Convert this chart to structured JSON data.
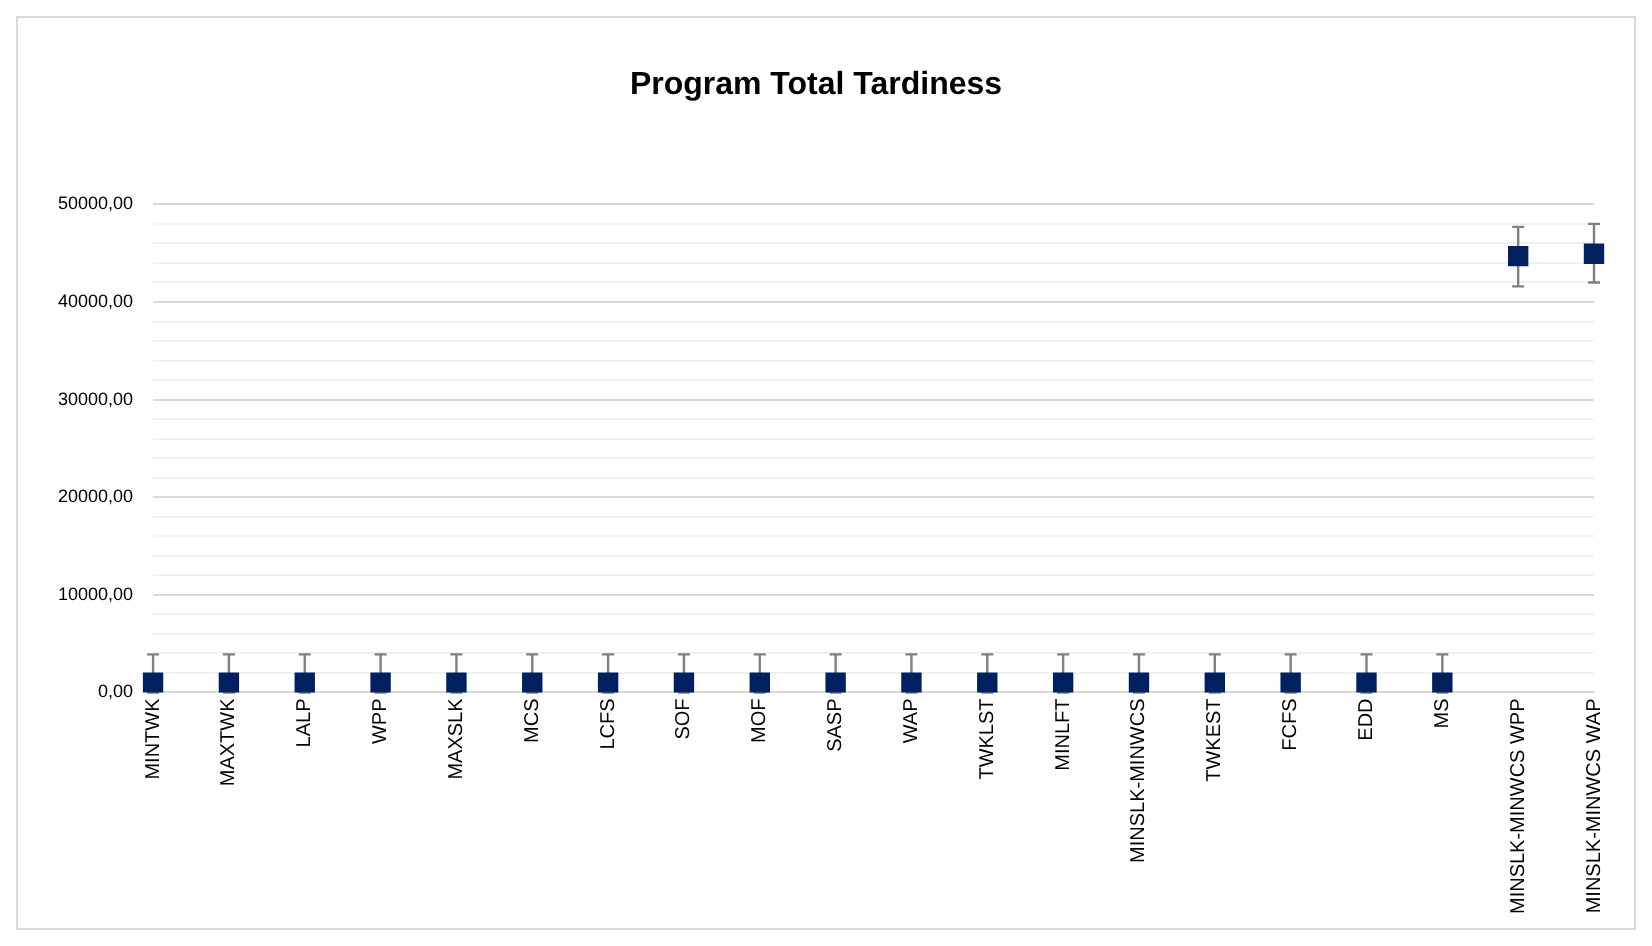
{
  "chart_data": {
    "type": "scatter",
    "title": "Program Total Tardiness",
    "categories": [
      "MINTWK",
      "MAXTWK",
      "LALP",
      "WPP",
      "MAXSLK",
      "MCS",
      "LCFS",
      "SOF",
      "MOF",
      "SASP",
      "WAP",
      "TWKLST",
      "MINLFT",
      "MINSLK-MINWCS",
      "TWKEST",
      "FCFS",
      "EDD",
      "MS",
      "MINSLK-MINWCS WPP",
      "MINSLK-MINWCS WAP"
    ],
    "values": [
      1000,
      1000,
      1000,
      1000,
      1000,
      1000,
      1000,
      1000,
      1000,
      1000,
      1000,
      1000,
      1000,
      1000,
      1000,
      1000,
      1000,
      1000,
      44700,
      44950
    ],
    "errors": [
      [
        0,
        3900
      ],
      [
        0,
        3900
      ],
      [
        0,
        3900
      ],
      [
        0,
        3900
      ],
      [
        0,
        3900
      ],
      [
        0,
        3900
      ],
      [
        0,
        3900
      ],
      [
        0,
        3900
      ],
      [
        0,
        3900
      ],
      [
        0,
        3900
      ],
      [
        0,
        3900
      ],
      [
        0,
        3900
      ],
      [
        0,
        3900
      ],
      [
        0,
        3900
      ],
      [
        0,
        3900
      ],
      [
        0,
        3900
      ],
      [
        0,
        3900
      ],
      [
        0,
        3900
      ],
      [
        41600,
        47700
      ],
      [
        42000,
        48000
      ]
    ],
    "color": "#002060",
    "marker": "square",
    "grid": "y",
    "legend": false,
    "ylim": [
      0,
      50000
    ],
    "yticks": [
      {
        "value": 0,
        "label": "0,00"
      },
      {
        "value": 2000,
        "label": null
      },
      {
        "value": 4000,
        "label": null
      },
      {
        "value": 6000,
        "label": null
      },
      {
        "value": 8000,
        "label": null
      },
      {
        "value": 10000,
        "label": "10000,00"
      },
      {
        "value": 12000,
        "label": null
      },
      {
        "value": 14000,
        "label": null
      },
      {
        "value": 16000,
        "label": null
      },
      {
        "value": 18000,
        "label": null
      },
      {
        "value": 20000,
        "label": "20000,00"
      },
      {
        "value": 22000,
        "label": null
      },
      {
        "value": 24000,
        "label": null
      },
      {
        "value": 26000,
        "label": null
      },
      {
        "value": 28000,
        "label": null
      },
      {
        "value": 30000,
        "label": "30000,00"
      },
      {
        "value": 32000,
        "label": null
      },
      {
        "value": 34000,
        "label": null
      },
      {
        "value": 36000,
        "label": null
      },
      {
        "value": 38000,
        "label": null
      },
      {
        "value": 40000,
        "label": "40000,00"
      },
      {
        "value": 42000,
        "label": null
      },
      {
        "value": 44000,
        "label": null
      },
      {
        "value": 46000,
        "label": null
      },
      {
        "value": 48000,
        "label": null
      },
      {
        "value": 50000,
        "label": "50000,00"
      }
    ]
  }
}
